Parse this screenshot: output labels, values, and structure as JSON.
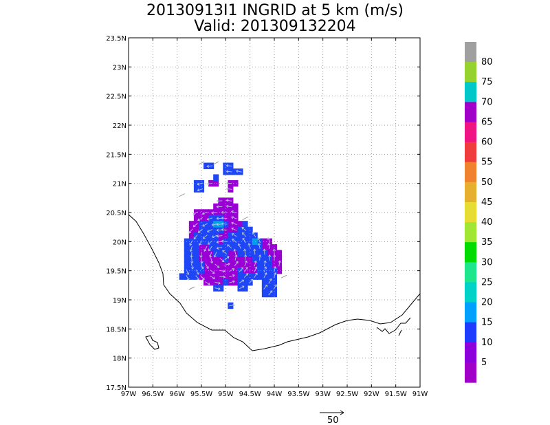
{
  "title": {
    "line1": "20130913I1 INGRID at 5 km (m/s)",
    "line2": "Valid: 201309132204"
  },
  "map": {
    "lat_labels": [
      "23.5N",
      "23N",
      "22.5N",
      "22N",
      "21.5N",
      "21N",
      "20.5N",
      "20N",
      "19.5N",
      "19N",
      "18.5N",
      "18N",
      "17.5N"
    ],
    "lon_labels": [
      "97W",
      "96.5W",
      "96W",
      "95.5W",
      "95W",
      "94.5W",
      "94W",
      "93.5W",
      "93W",
      "92.5W",
      "92W",
      "91.5W",
      "91W"
    ],
    "lat_range": [
      17.5,
      23.5
    ],
    "lon_range": [
      -97,
      -91
    ],
    "grid": true
  },
  "colorbar": {
    "labels": [
      "80",
      "75",
      "70",
      "65",
      "60",
      "55",
      "50",
      "45",
      "40",
      "35",
      "30",
      "25",
      "20",
      "15",
      "10",
      "5"
    ],
    "colors": [
      "#a0a0a0",
      "#96d22d",
      "#00c8c8",
      "#a000c8",
      "#f01482",
      "#f03c3c",
      "#f0822d",
      "#e6af2d",
      "#e6dc32",
      "#a0e632",
      "#00dc00",
      "#1ee68c",
      "#00d2c8",
      "#00a0ff",
      "#1e3cff",
      "#8c00dc",
      "#a000c8"
    ]
  },
  "reference_vector": {
    "label": "50"
  },
  "wind_cells": {
    "violet": [
      [
        -95.1,
        20.7
      ],
      [
        -95.0,
        20.7
      ],
      [
        -94.9,
        20.7
      ],
      [
        -95.2,
        20.6
      ],
      [
        -95.1,
        20.6
      ],
      [
        -95.0,
        20.6
      ],
      [
        -94.9,
        20.6
      ],
      [
        -94.8,
        20.6
      ],
      [
        -95.6,
        20.5
      ],
      [
        -95.5,
        20.5
      ],
      [
        -95.4,
        20.5
      ],
      [
        -95.3,
        20.5
      ],
      [
        -95.2,
        20.5
      ],
      [
        -95.1,
        20.5
      ],
      [
        -95.0,
        20.5
      ],
      [
        -94.9,
        20.5
      ],
      [
        -94.8,
        20.5
      ],
      [
        -95.6,
        20.4
      ],
      [
        -95.5,
        20.4
      ],
      [
        -95.4,
        20.4
      ],
      [
        -95.0,
        20.4
      ],
      [
        -94.9,
        20.4
      ],
      [
        -94.8,
        20.4
      ],
      [
        -95.7,
        20.3
      ],
      [
        -95.6,
        20.3
      ],
      [
        -94.9,
        20.3
      ],
      [
        -94.8,
        20.3
      ],
      [
        -94.7,
        20.3
      ],
      [
        -95.7,
        20.2
      ],
      [
        -95.6,
        20.2
      ],
      [
        -95.0,
        20.2
      ],
      [
        -94.9,
        20.2
      ],
      [
        -94.8,
        20.2
      ],
      [
        -95.7,
        20.1
      ],
      [
        -95.1,
        20.1
      ],
      [
        -95.0,
        20.1
      ],
      [
        -95.1,
        20.0
      ],
      [
        -94.2,
        20.0
      ],
      [
        -94.1,
        20.0
      ],
      [
        -95.5,
        19.9
      ],
      [
        -95.4,
        19.9
      ],
      [
        -94.2,
        19.9
      ],
      [
        -94.1,
        19.9
      ],
      [
        -94.0,
        19.9
      ],
      [
        -95.5,
        19.8
      ],
      [
        -95.4,
        19.8
      ],
      [
        -95.3,
        19.8
      ],
      [
        -94.9,
        19.8
      ],
      [
        -94.8,
        19.8
      ],
      [
        -94.1,
        19.8
      ],
      [
        -94.0,
        19.8
      ],
      [
        -93.9,
        19.8
      ],
      [
        -95.5,
        19.7
      ],
      [
        -95.4,
        19.7
      ],
      [
        -95.3,
        19.7
      ],
      [
        -95.2,
        19.7
      ],
      [
        -95.1,
        19.7
      ],
      [
        -94.9,
        19.7
      ],
      [
        -94.8,
        19.7
      ],
      [
        -94.7,
        19.7
      ],
      [
        -94.6,
        19.7
      ],
      [
        -94.5,
        19.7
      ],
      [
        -94.0,
        19.7
      ],
      [
        -93.9,
        19.7
      ],
      [
        -95.4,
        19.6
      ],
      [
        -95.3,
        19.6
      ],
      [
        -95.2,
        19.6
      ],
      [
        -95.1,
        19.6
      ],
      [
        -95.0,
        19.6
      ],
      [
        -94.9,
        19.6
      ],
      [
        -94.8,
        19.6
      ],
      [
        -94.7,
        19.6
      ],
      [
        -94.6,
        19.6
      ],
      [
        -94.5,
        19.6
      ],
      [
        -94.4,
        19.6
      ],
      [
        -94.0,
        19.6
      ],
      [
        -93.9,
        19.6
      ],
      [
        -95.4,
        19.5
      ],
      [
        -95.3,
        19.5
      ],
      [
        -95.2,
        19.5
      ],
      [
        -95.1,
        19.5
      ],
      [
        -95.0,
        19.5
      ],
      [
        -94.9,
        19.5
      ],
      [
        -94.8,
        19.5
      ],
      [
        -94.6,
        19.5
      ],
      [
        -94.5,
        19.5
      ],
      [
        -94.4,
        19.5
      ],
      [
        -93.9,
        19.5
      ],
      [
        -95.5,
        19.4
      ],
      [
        -95.4,
        19.4
      ],
      [
        -95.3,
        19.4
      ],
      [
        -95.2,
        19.4
      ],
      [
        -95.1,
        19.4
      ],
      [
        -95.0,
        19.4
      ],
      [
        -94.9,
        19.4
      ],
      [
        -94.8,
        19.4
      ],
      [
        -95.4,
        19.3
      ],
      [
        -95.3,
        19.3
      ],
      [
        -95.2,
        19.3
      ],
      [
        -95.1,
        19.3
      ],
      [
        -94.9,
        19.3
      ],
      [
        -94.8,
        19.3
      ],
      [
        -95.3,
        21.0
      ],
      [
        -95.2,
        21.0
      ],
      [
        -94.9,
        21.0
      ],
      [
        -94.8,
        21.0
      ],
      [
        -94.9,
        20.9
      ]
    ],
    "blue": [
      [
        -95.4,
        21.3
      ],
      [
        -95.3,
        21.3
      ],
      [
        -95.0,
        21.3
      ],
      [
        -94.9,
        21.3
      ],
      [
        -95.0,
        21.2
      ],
      [
        -94.9,
        21.2
      ],
      [
        -94.8,
        21.2
      ],
      [
        -94.7,
        21.2
      ],
      [
        -95.6,
        21.0
      ],
      [
        -95.5,
        21.0
      ],
      [
        -95.6,
        20.9
      ],
      [
        -95.5,
        20.9
      ],
      [
        -95.2,
        21.1
      ],
      [
        -95.3,
        20.4
      ],
      [
        -95.2,
        20.4
      ],
      [
        -95.1,
        20.4
      ],
      [
        -95.5,
        20.3
      ],
      [
        -95.4,
        20.3
      ],
      [
        -95.3,
        20.3
      ],
      [
        -95.2,
        20.3
      ],
      [
        -95.1,
        20.3
      ],
      [
        -95.0,
        20.3
      ],
      [
        -94.6,
        20.3
      ],
      [
        -95.5,
        20.2
      ],
      [
        -95.4,
        20.2
      ],
      [
        -95.3,
        20.2
      ],
      [
        -95.2,
        20.2
      ],
      [
        -95.1,
        20.2
      ],
      [
        -94.7,
        20.2
      ],
      [
        -94.6,
        20.2
      ],
      [
        -94.5,
        20.2
      ],
      [
        -95.6,
        20.1
      ],
      [
        -95.5,
        20.1
      ],
      [
        -95.4,
        20.1
      ],
      [
        -95.3,
        20.1
      ],
      [
        -95.2,
        20.1
      ],
      [
        -94.9,
        20.1
      ],
      [
        -94.8,
        20.1
      ],
      [
        -94.7,
        20.1
      ],
      [
        -94.6,
        20.1
      ],
      [
        -94.5,
        20.1
      ],
      [
        -94.4,
        20.1
      ],
      [
        -95.8,
        20.0
      ],
      [
        -95.7,
        20.0
      ],
      [
        -95.6,
        20.0
      ],
      [
        -95.5,
        20.0
      ],
      [
        -95.4,
        20.0
      ],
      [
        -95.3,
        20.0
      ],
      [
        -95.2,
        20.0
      ],
      [
        -95.0,
        20.0
      ],
      [
        -94.9,
        20.0
      ],
      [
        -94.8,
        20.0
      ],
      [
        -94.7,
        20.0
      ],
      [
        -94.6,
        20.0
      ],
      [
        -94.5,
        20.0
      ],
      [
        -94.3,
        20.0
      ],
      [
        -95.8,
        19.9
      ],
      [
        -95.7,
        19.9
      ],
      [
        -95.6,
        19.9
      ],
      [
        -95.3,
        19.9
      ],
      [
        -95.2,
        19.9
      ],
      [
        -95.1,
        19.9
      ],
      [
        -95.0,
        19.9
      ],
      [
        -94.9,
        19.9
      ],
      [
        -94.8,
        19.9
      ],
      [
        -94.7,
        19.9
      ],
      [
        -94.6,
        19.9
      ],
      [
        -94.5,
        19.9
      ],
      [
        -94.4,
        19.9
      ],
      [
        -94.3,
        19.9
      ],
      [
        -95.8,
        19.8
      ],
      [
        -95.7,
        19.8
      ],
      [
        -95.6,
        19.8
      ],
      [
        -95.2,
        19.8
      ],
      [
        -95.1,
        19.8
      ],
      [
        -95.0,
        19.8
      ],
      [
        -94.7,
        19.8
      ],
      [
        -94.6,
        19.8
      ],
      [
        -94.5,
        19.8
      ],
      [
        -94.4,
        19.8
      ],
      [
        -94.3,
        19.8
      ],
      [
        -94.2,
        19.8
      ],
      [
        -95.8,
        19.7
      ],
      [
        -95.7,
        19.7
      ],
      [
        -95.6,
        19.7
      ],
      [
        -95.0,
        19.7
      ],
      [
        -94.4,
        19.7
      ],
      [
        -94.3,
        19.7
      ],
      [
        -94.2,
        19.7
      ],
      [
        -94.1,
        19.7
      ],
      [
        -95.8,
        19.6
      ],
      [
        -95.7,
        19.6
      ],
      [
        -95.6,
        19.6
      ],
      [
        -95.5,
        19.6
      ],
      [
        -94.3,
        19.6
      ],
      [
        -94.2,
        19.6
      ],
      [
        -94.1,
        19.6
      ],
      [
        -95.8,
        19.5
      ],
      [
        -95.7,
        19.5
      ],
      [
        -95.6,
        19.5
      ],
      [
        -95.5,
        19.5
      ],
      [
        -94.7,
        19.5
      ],
      [
        -94.3,
        19.5
      ],
      [
        -94.2,
        19.5
      ],
      [
        -94.1,
        19.5
      ],
      [
        -94.0,
        19.5
      ],
      [
        -95.9,
        19.4
      ],
      [
        -95.8,
        19.4
      ],
      [
        -95.7,
        19.4
      ],
      [
        -95.6,
        19.4
      ],
      [
        -94.7,
        19.4
      ],
      [
        -94.6,
        19.4
      ],
      [
        -94.5,
        19.4
      ],
      [
        -94.4,
        19.4
      ],
      [
        -94.3,
        19.4
      ],
      [
        -94.2,
        19.4
      ],
      [
        -94.1,
        19.4
      ],
      [
        -94.0,
        19.4
      ],
      [
        -95.0,
        19.3
      ],
      [
        -94.7,
        19.3
      ],
      [
        -94.6,
        19.3
      ],
      [
        -94.5,
        19.3
      ],
      [
        -94.2,
        19.3
      ],
      [
        -94.1,
        19.3
      ],
      [
        -94.0,
        19.3
      ],
      [
        -95.2,
        19.2
      ],
      [
        -95.1,
        19.2
      ],
      [
        -94.7,
        19.2
      ],
      [
        -94.6,
        19.2
      ],
      [
        -94.2,
        19.2
      ],
      [
        -94.1,
        19.2
      ],
      [
        -94.0,
        19.2
      ],
      [
        -94.2,
        19.1
      ],
      [
        -94.1,
        19.1
      ],
      [
        -94.0,
        19.1
      ],
      [
        -94.9,
        18.9
      ]
    ],
    "cyan": [
      [
        -95.2,
        20.3
      ],
      [
        -95.1,
        20.3
      ],
      [
        -94.4,
        20.0
      ]
    ]
  }
}
